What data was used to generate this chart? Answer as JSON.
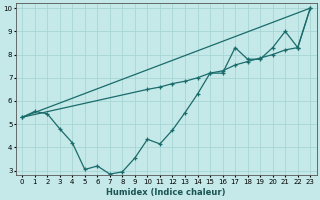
{
  "xlabel": "Humidex (Indice chaleur)",
  "bg_color": "#c5e8e8",
  "grid_color": "#a8d5d5",
  "line_color": "#1a6b6b",
  "xlim": [
    -0.5,
    23.5
  ],
  "ylim": [
    2.8,
    10.2
  ],
  "yticks": [
    3,
    4,
    5,
    6,
    7,
    8,
    9,
    10
  ],
  "xticks": [
    0,
    1,
    2,
    3,
    4,
    5,
    6,
    7,
    8,
    9,
    10,
    11,
    12,
    13,
    14,
    15,
    16,
    17,
    18,
    19,
    20,
    21,
    22,
    23
  ],
  "line1_x": [
    0,
    1,
    2,
    3,
    4,
    5,
    6,
    7,
    8,
    9,
    10,
    11,
    12,
    13,
    14,
    15,
    16,
    17,
    18,
    19,
    20,
    21,
    22,
    23
  ],
  "line1_y": [
    5.3,
    5.55,
    5.45,
    4.8,
    4.2,
    3.05,
    3.2,
    2.85,
    2.95,
    3.55,
    4.35,
    4.15,
    4.75,
    5.5,
    6.3,
    7.2,
    7.2,
    8.3,
    7.8,
    7.8,
    8.3,
    9.0,
    8.3,
    10.0
  ],
  "line2_x": [
    0,
    23
  ],
  "line2_y": [
    5.3,
    10.0
  ],
  "line3_x": [
    0,
    10,
    11,
    12,
    13,
    14,
    15,
    16,
    17,
    18,
    19,
    20,
    21,
    22,
    23
  ],
  "line3_y": [
    5.3,
    6.5,
    6.6,
    6.75,
    6.85,
    7.0,
    7.2,
    7.3,
    7.55,
    7.7,
    7.85,
    8.0,
    8.2,
    8.3,
    10.0
  ]
}
